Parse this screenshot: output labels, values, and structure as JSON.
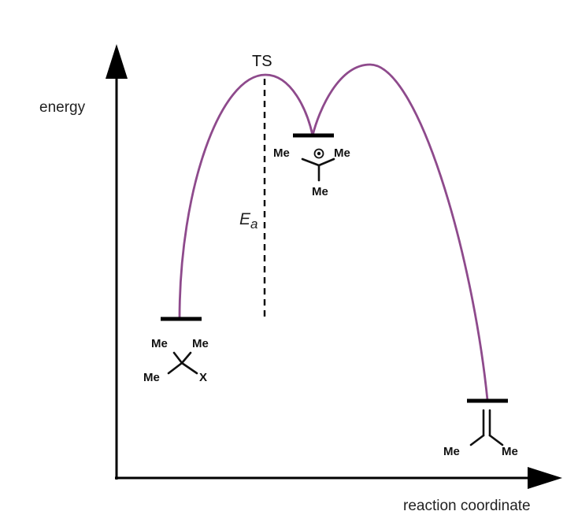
{
  "axes": {
    "y_label": "energy",
    "x_label": "reaction coordinate"
  },
  "transition_state": {
    "label": "TS"
  },
  "activation_energy": {
    "symbol": "E",
    "subscript": "a"
  },
  "reactant": {
    "substituents": [
      "Me",
      "Me",
      "Me"
    ],
    "leaving_group": "X"
  },
  "intermediate": {
    "substituents": [
      "Me",
      "Me",
      "Me"
    ],
    "charge": "+"
  },
  "product": {
    "substituents": [
      "Me",
      "Me"
    ]
  },
  "colors": {
    "curve": "#8e4a8c",
    "axes": "#000000",
    "levels": "#000000"
  }
}
